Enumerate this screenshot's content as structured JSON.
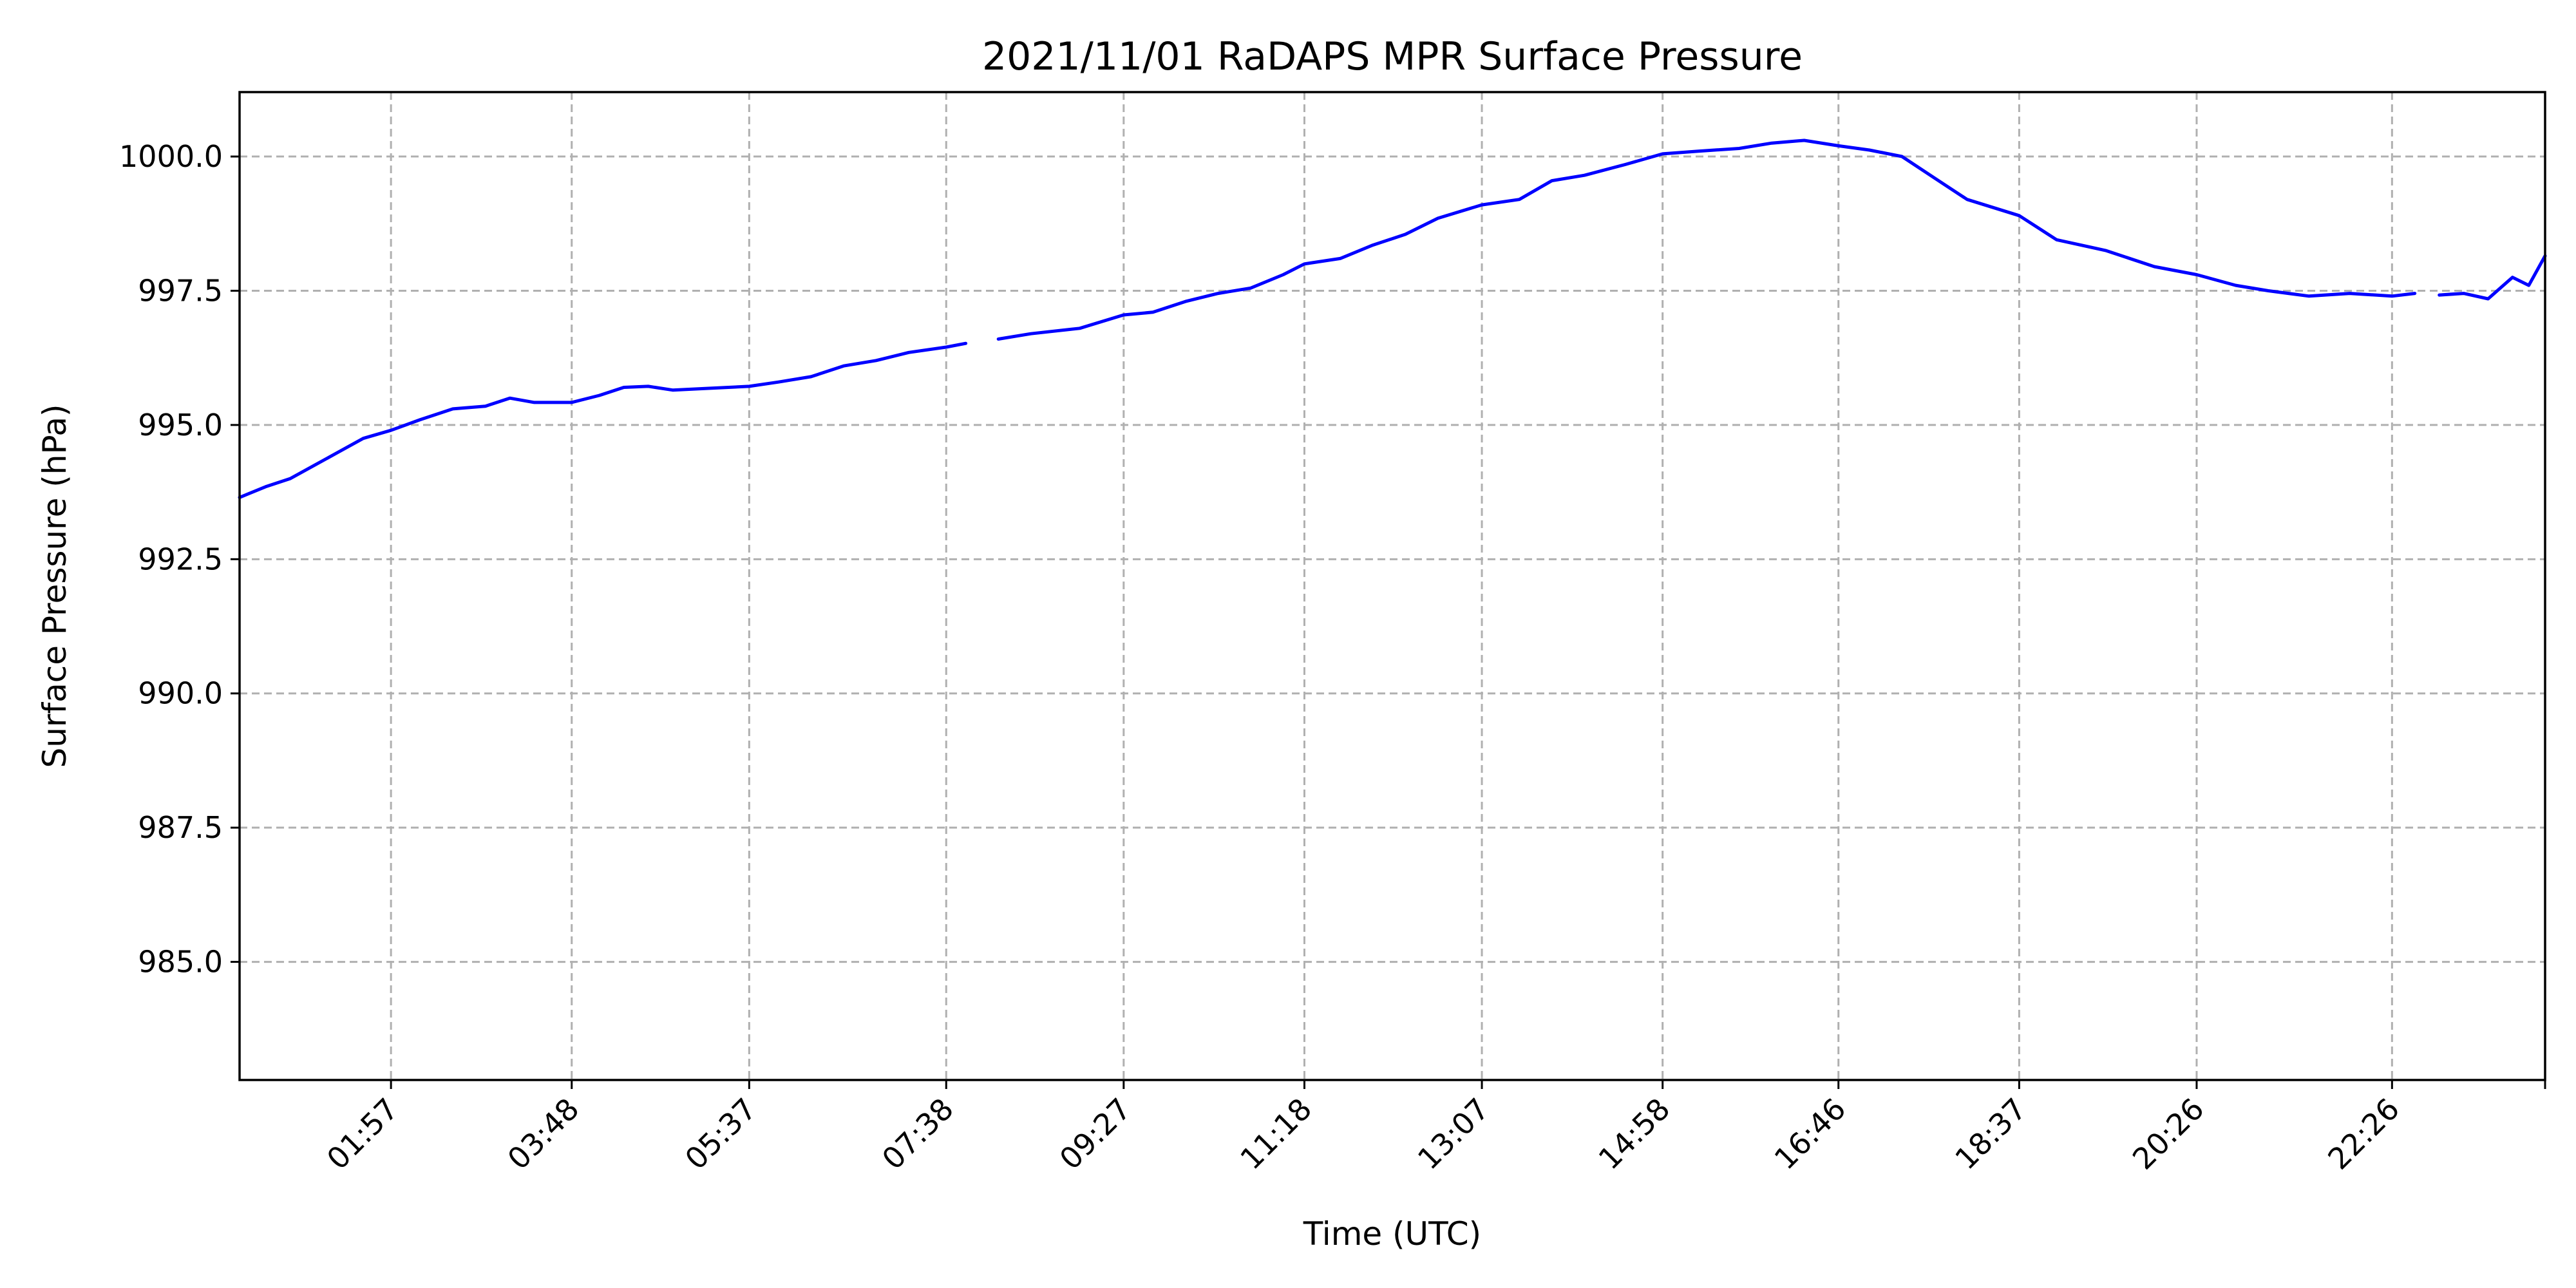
{
  "chart_data": {
    "type": "line",
    "title": "2021/11/01 RaDAPS MPR Surface Pressure",
    "xlabel": "Time (UTC)",
    "ylabel": "Surface Pressure (hPa)",
    "xlim": [
      "00:24",
      "24:00"
    ],
    "ylim": [
      982.8,
      1001.2
    ],
    "grid": true,
    "legend": "none",
    "series_color": "#0000ff",
    "x_ticks": [
      "01:57",
      "03:48",
      "05:37",
      "07:38",
      "09:27",
      "11:18",
      "13:07",
      "14:58",
      "16:46",
      "18:37",
      "20:26",
      "22:26",
      "24:00"
    ],
    "x_tick_labels": [
      "01:57",
      "03:48",
      "05:37",
      "07:38",
      "09:27",
      "11:18",
      "13:07",
      "14:58",
      "16:46",
      "18:37",
      "20:26",
      "22:26",
      ""
    ],
    "y_ticks": [
      985.0,
      987.5,
      990.0,
      992.5,
      995.0,
      997.5,
      1000.0
    ],
    "y_tick_labels": [
      "985.0",
      "987.5",
      "990.0",
      "992.5",
      "995.0",
      "997.5",
      "1000.0"
    ],
    "series": [
      {
        "segments": [
          {
            "x": [
              "00:24",
              "00:40",
              "00:55",
              "01:10",
              "01:25",
              "01:40",
              "01:57",
              "02:15",
              "02:35",
              "02:55",
              "03:10",
              "03:25",
              "03:48",
              "04:05",
              "04:20",
              "04:35",
              "04:50",
              "05:10",
              "05:37",
              "05:55",
              "06:15",
              "06:35",
              "06:55",
              "07:15",
              "07:38",
              "07:50"
            ],
            "y": [
              993.65,
              993.85,
              994.0,
              994.25,
              994.5,
              994.75,
              994.9,
              995.1,
              995.3,
              995.35,
              995.5,
              995.42,
              995.42,
              995.55,
              995.7,
              995.72,
              995.65,
              995.68,
              995.72,
              995.8,
              995.9,
              996.1,
              996.2,
              996.35,
              996.45,
              996.52
            ]
          },
          {
            "x": [
              "08:10",
              "08:30",
              "09:00",
              "09:27",
              "09:45",
              "10:05",
              "10:25",
              "10:45",
              "11:05",
              "11:18",
              "11:40",
              "12:00",
              "12:20",
              "12:40",
              "13:07",
              "13:30",
              "13:50",
              "14:10",
              "14:35",
              "14:58",
              "15:20",
              "15:45",
              "16:05",
              "16:25",
              "16:46",
              "17:05",
              "17:25",
              "17:45",
              "18:05",
              "18:37",
              "19:00",
              "19:30",
              "20:00",
              "20:26",
              "20:50",
              "21:10",
              "21:35",
              "22:00",
              "22:26",
              "22:40"
            ],
            "y": [
              996.6,
              996.7,
              996.8,
              997.05,
              997.1,
              997.3,
              997.45,
              997.55,
              997.8,
              998.0,
              998.1,
              998.35,
              998.55,
              998.85,
              999.1,
              999.2,
              999.55,
              999.65,
              999.85,
              1000.05,
              1000.1,
              1000.15,
              1000.25,
              1000.3,
              1000.2,
              1000.12,
              1000.0,
              999.6,
              999.2,
              998.9,
              998.45,
              998.25,
              997.95,
              997.8,
              997.6,
              997.5,
              997.4,
              997.45,
              997.4,
              997.45
            ]
          },
          {
            "x": [
              "22:55",
              "23:10",
              "23:25",
              "23:40",
              "23:50",
              "24:00"
            ],
            "y": [
              997.42,
              997.45,
              997.35,
              997.75,
              997.6,
              998.15
            ]
          }
        ]
      }
    ]
  }
}
